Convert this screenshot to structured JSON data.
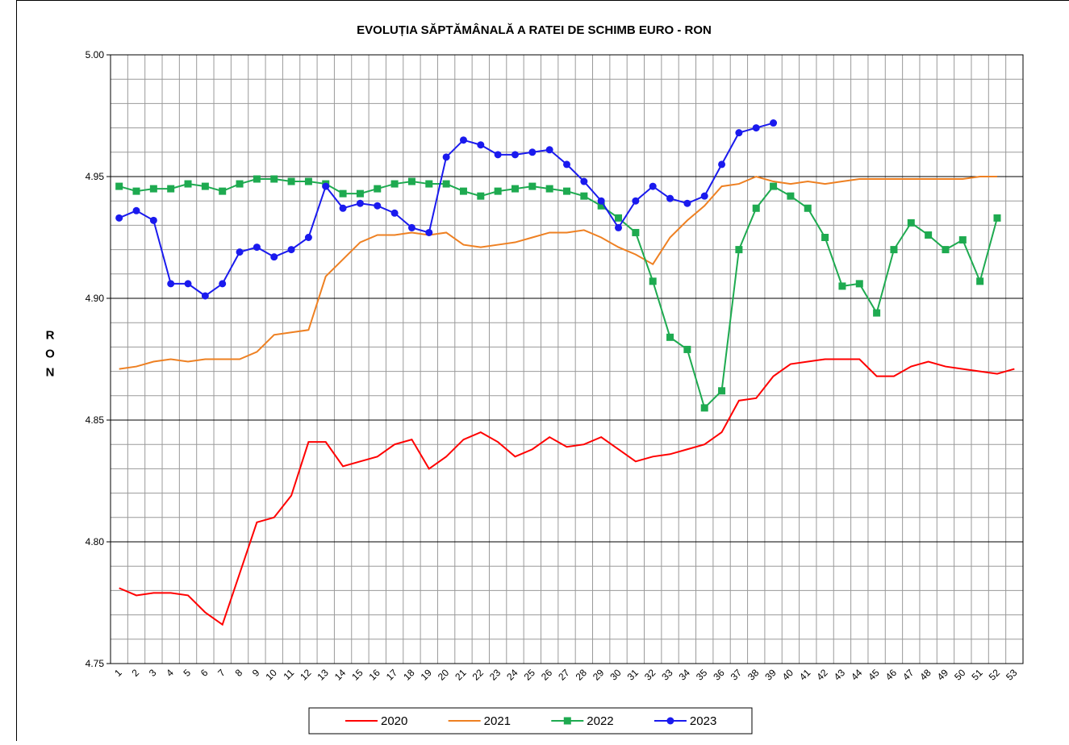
{
  "chart_data": {
    "type": "line",
    "title": "EVOLUȚIA SĂPTĂMÂNALĂ  A RATEI DE SCHIMB EURO - RON",
    "y_label": "RON",
    "categories": [
      "1",
      "2",
      "3",
      "4",
      "5",
      "6",
      "7",
      "8",
      "9",
      "10",
      "11",
      "12",
      "13",
      "14",
      "15",
      "16",
      "17",
      "18",
      "19",
      "20",
      "21",
      "22",
      "23",
      "24",
      "25",
      "26",
      "27",
      "28",
      "29",
      "30",
      "31",
      "32",
      "33",
      "34",
      "35",
      "36",
      "37",
      "38",
      "39",
      "40",
      "41",
      "42",
      "43",
      "44",
      "45",
      "46",
      "47",
      "48",
      "49",
      "50",
      "51",
      "52",
      "53"
    ],
    "ylim": [
      4.75,
      5.0
    ],
    "yticks": [
      4.75,
      {
        "value": 4.8,
        "label": "4.80"
      },
      4.85,
      {
        "value": 4.9,
        "label": "4.90"
      },
      4.95,
      {
        "value": 5.0,
        "label": "5.00"
      }
    ],
    "grid": true,
    "legend": "bottom",
    "series": [
      {
        "name": "2020",
        "color": "#ff0000",
        "marker": null,
        "values": [
          4.781,
          4.778,
          4.779,
          4.779,
          4.778,
          4.771,
          4.766,
          4.787,
          4.808,
          4.81,
          4.819,
          4.841,
          4.841,
          4.831,
          4.833,
          4.835,
          4.84,
          4.842,
          4.83,
          4.835,
          4.842,
          4.845,
          4.841,
          4.835,
          4.838,
          4.843,
          4.839,
          4.84,
          4.843,
          4.838,
          4.833,
          4.835,
          4.836,
          4.838,
          4.84,
          4.845,
          4.858,
          4.859,
          4.868,
          4.873,
          4.874,
          4.875,
          4.875,
          4.875,
          4.868,
          4.868,
          4.872,
          4.874,
          4.872,
          4.871,
          4.87,
          4.869,
          4.871
        ]
      },
      {
        "name": "2021",
        "color": "#ee8022",
        "marker": null,
        "values": [
          4.871,
          4.872,
          4.874,
          4.875,
          4.874,
          4.875,
          4.875,
          4.875,
          4.878,
          4.885,
          4.886,
          4.887,
          4.909,
          4.916,
          4.923,
          4.926,
          4.926,
          4.927,
          4.926,
          4.927,
          4.922,
          4.921,
          4.922,
          4.923,
          4.925,
          4.927,
          4.927,
          4.928,
          4.925,
          4.921,
          4.918,
          4.914,
          4.925,
          4.932,
          4.938,
          4.946,
          4.947,
          4.95,
          4.948,
          4.947,
          4.948,
          4.947,
          4.948,
          4.949,
          4.949,
          4.949,
          4.949,
          4.949,
          4.949,
          4.949,
          4.95,
          4.95,
          null
        ]
      },
      {
        "name": "2022",
        "color": "#1eaa50",
        "marker": "square",
        "values": [
          4.946,
          4.944,
          4.945,
          4.945,
          4.947,
          4.946,
          4.944,
          4.947,
          4.949,
          4.949,
          4.948,
          4.948,
          4.947,
          4.943,
          4.943,
          4.945,
          4.947,
          4.948,
          4.947,
          4.947,
          4.944,
          4.942,
          4.944,
          4.945,
          4.946,
          4.945,
          4.944,
          4.942,
          4.938,
          4.933,
          4.927,
          4.907,
          4.884,
          4.879,
          4.855,
          4.862,
          4.92,
          4.937,
          4.946,
          4.942,
          4.937,
          4.925,
          4.905,
          4.906,
          4.894,
          4.92,
          4.931,
          4.926,
          4.92,
          4.924,
          4.907,
          4.933,
          null
        ]
      },
      {
        "name": "2023",
        "color": "#1a1aee",
        "marker": "circle",
        "values": [
          4.933,
          4.936,
          4.932,
          4.906,
          4.906,
          4.901,
          4.906,
          4.919,
          4.921,
          4.917,
          4.92,
          4.925,
          4.946,
          4.937,
          4.939,
          4.938,
          4.935,
          4.929,
          4.927,
          4.958,
          4.965,
          4.963,
          4.959,
          4.959,
          4.96,
          4.961,
          4.955,
          4.948,
          4.94,
          4.929,
          4.94,
          4.946,
          4.941,
          4.939,
          4.942,
          4.955,
          4.968,
          4.97,
          4.972,
          null,
          null,
          null,
          null,
          null,
          null,
          null,
          null,
          null,
          null,
          null,
          null,
          null,
          null
        ]
      }
    ]
  }
}
